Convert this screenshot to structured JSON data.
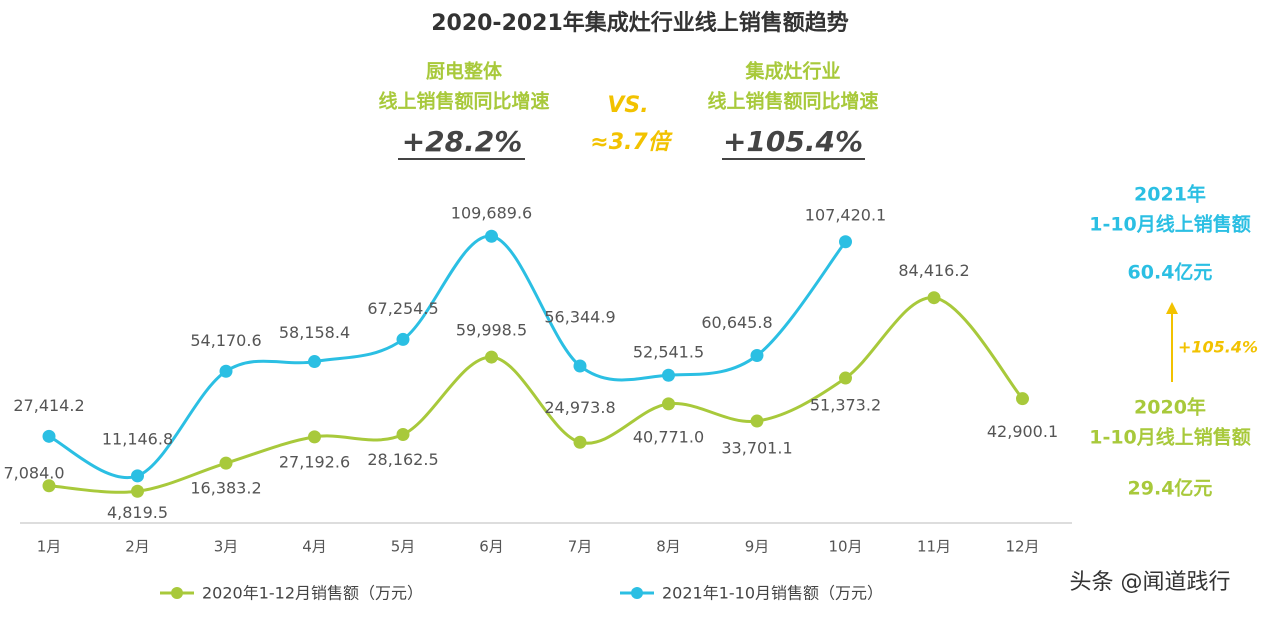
{
  "chart_data": {
    "type": "line",
    "title": "2020-2021年集成灶行业线上销售额趋势",
    "categories": [
      "1月",
      "2月",
      "3月",
      "4月",
      "5月",
      "6月",
      "7月",
      "8月",
      "9月",
      "10月",
      "11月",
      "12月"
    ],
    "series": [
      {
        "name": "2020年1-12月销售额（万元）",
        "color": "#a8c93b",
        "values": [
          7084.0,
          4819.5,
          16383.2,
          27192.6,
          28162.5,
          59998.5,
          24973.8,
          40771.0,
          33701.1,
          51373.2,
          84416.2,
          42900.1
        ],
        "value_labels": [
          "7,084.0",
          "4,819.5",
          "16,383.2",
          "27,192.6",
          "28,162.5",
          "59,998.5",
          "24,973.8",
          "40,771.0",
          "33,701.1",
          "51,373.2",
          "84,416.2",
          "42,900.1"
        ]
      },
      {
        "name": "2021年1-10月销售额（万元）",
        "color": "#2bbfe3",
        "values": [
          27414.2,
          11146.8,
          54170.6,
          58158.4,
          67254.5,
          109689.6,
          56344.9,
          52541.5,
          60645.8,
          107420.1,
          null,
          null
        ],
        "value_labels": [
          "27,414.2",
          "11,146.8",
          "54,170.6",
          "58,158.4",
          "67,254.5",
          "109,689.6",
          "56,344.9",
          "52,541.5",
          "60,645.8",
          "107,420.1",
          null,
          null
        ]
      }
    ],
    "annotations": {
      "left_line1": "厨电整体",
      "left_line2": "线上销售额同比增速",
      "left_value": "+28.2%",
      "vs": "VS.",
      "ratio": "≈3.7倍",
      "right_line1": "集成灶行业",
      "right_line2": "线上销售额同比增速",
      "right_value": "+105.4%",
      "y2021_line1": "2021年",
      "y2021_line2": "1-10月线上销售额",
      "y2021_value": "60.4亿元",
      "growth": "+105.4%",
      "y2020_line1": "2020年",
      "y2020_line2": "1-10月线上销售额",
      "y2020_value": "29.4亿元"
    }
  },
  "watermark": "头条 @闻道践行"
}
